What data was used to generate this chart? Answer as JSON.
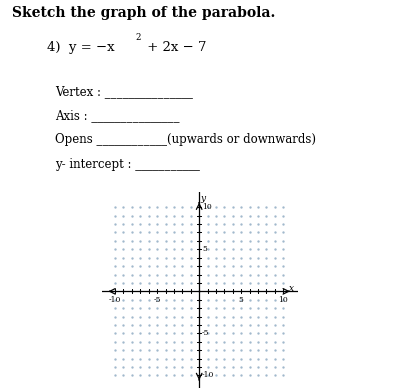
{
  "title_bold": "Sketch the graph of the parabola.",
  "fields": [
    "Vertex : _______________",
    "Axis : _______________",
    "Opens ____________(upwards or downwards)",
    "y- intercept : ___________"
  ],
  "graph_xlim": [
    -10,
    10
  ],
  "graph_ylim": [
    -10,
    10
  ],
  "xticks": [
    -10,
    -5,
    5,
    10
  ],
  "yticks": [
    -10,
    -5,
    5,
    10
  ],
  "tick_labels_x": [
    "-10",
    "-5",
    "5",
    "10"
  ],
  "tick_labels_y": [
    "-10",
    "-5",
    "5",
    "10"
  ],
  "xlabel": "x",
  "ylabel": "y",
  "dot_color": "#a0b8cc",
  "background_color": "#ffffff",
  "text_color": "#000000",
  "axis_color": "#000000",
  "fontsize_title": 10,
  "fontsize_eq": 9.5,
  "fontsize_fields": 8.5,
  "fontsize_ticks": 5.5
}
